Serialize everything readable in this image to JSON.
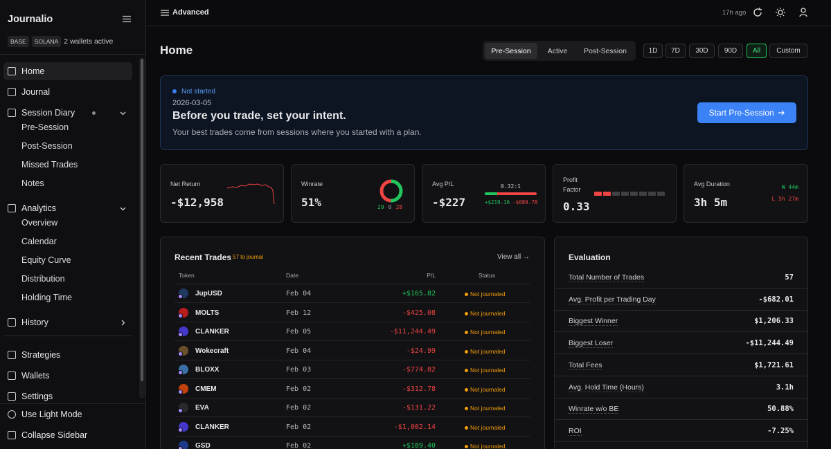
{
  "sidebar": {
    "brand": "Journalio",
    "chips": [
      "BASE",
      "SOLANA"
    ],
    "wallets": "2 wallets active",
    "nav": [
      {
        "label": "Home"
      },
      {
        "label": "Journal"
      },
      {
        "label": "Session Diary",
        "children": [
          "Pre-Session",
          "Post-Session",
          "Missed Trades",
          "Notes"
        ]
      },
      {
        "label": "Analytics",
        "children": [
          "Overview",
          "Calendar",
          "Equity Curve",
          "Distribution",
          "Holding Time"
        ]
      },
      {
        "label": "History"
      }
    ],
    "lower": [
      "Strategies",
      "Wallets",
      "Settings"
    ],
    "footer": [
      "Use Light Mode",
      "Collapse Sidebar"
    ]
  },
  "topbar": {
    "mode": "Advanced",
    "updated": "17h ago"
  },
  "header": {
    "title": "Home",
    "session_tabs": [
      "Pre-Session",
      "Active",
      "Post-Session"
    ],
    "ranges": [
      "1D",
      "7D",
      "30D",
      "90D",
      "All",
      "Custom"
    ]
  },
  "banner": {
    "status": "Not started",
    "date": "2026-03-05",
    "heading": "Before you trade, set your intent.",
    "text": "Your best trades come from sessions where you started with a plan.",
    "button": "Start Pre-Session"
  },
  "cards": {
    "net_return": {
      "label": "Net Return",
      "value": "-$12,958"
    },
    "winrate": {
      "label": "Winrate",
      "value": "51%",
      "wins": 29,
      "breakeven": 0,
      "losses": 28
    },
    "avg_pl": {
      "label": "Avg P/L",
      "value": "-$227",
      "ratio": "0.32:1",
      "avg_win": "+$219.16",
      "avg_loss": "-$689.78"
    },
    "profit_factor": {
      "label": "Profit Factor",
      "value": "0.33"
    },
    "avg_duration": {
      "label": "Avg Duration",
      "value": "3h 5m",
      "win": "W 44m",
      "loss": "L 5h 27m"
    }
  },
  "recent_trades": {
    "title": "Recent Trades",
    "badge": "57 to journal",
    "link": "View all →",
    "columns": [
      "Token",
      "Date",
      "P/L",
      "Status"
    ],
    "rows": [
      [
        "JupUSD",
        "Feb 04",
        "+$165.82",
        "Not journaled"
      ],
      [
        "MOLTS",
        "Feb 12",
        "-$425.08",
        "Not journaled"
      ],
      [
        "CLANKER",
        "Feb 05",
        "-$11,244.49",
        "Not journaled"
      ],
      [
        "Wokecraft",
        "Feb 04",
        "-$24.99",
        "Not journaled"
      ],
      [
        "BLOXX",
        "Feb 03",
        "-$774.82",
        "Not journaled"
      ],
      [
        "CMEM",
        "Feb 02",
        "-$312.78",
        "Not journaled"
      ],
      [
        "EVA",
        "Feb 02",
        "-$131.22",
        "Not journaled"
      ],
      [
        "CLANKER",
        "Feb 02",
        "-$1,002.14",
        "Not journaled"
      ],
      [
        "GSD",
        "Feb 02",
        "+$189.40",
        "Not journaled"
      ]
    ]
  },
  "evaluation": {
    "title": "Evaluation",
    "rows": [
      [
        "Total Number of Trades",
        "57"
      ],
      [
        "Avg. Profit per Trading Day",
        "-$682.01"
      ],
      [
        "Biggest Winner",
        "$1,206.33"
      ],
      [
        "Biggest Loser",
        "-$11,244.49"
      ],
      [
        "Total Fees",
        "$1,721.61"
      ],
      [
        "Avg. Hold Time (Hours)",
        "3.1h"
      ],
      [
        "Winrate w/o BE",
        "50.88%"
      ],
      [
        "ROI",
        "-7.25%"
      ]
    ]
  }
}
